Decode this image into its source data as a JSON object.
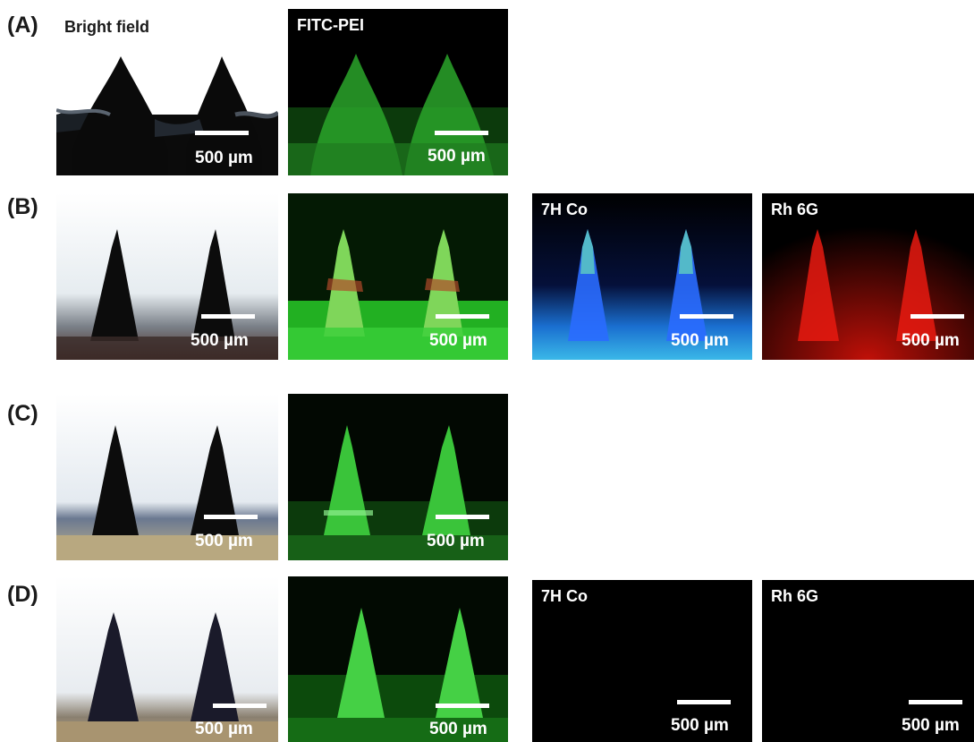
{
  "rows": [
    {
      "label": "(A)"
    },
    {
      "label": "(B)"
    },
    {
      "label": "(C)"
    },
    {
      "label": "(D)"
    }
  ],
  "columns": {
    "bright_field": "Bright field",
    "fitc_pei": "FITC-PEI",
    "h7_co": "7H Co",
    "rh6g": "Rh 6G"
  },
  "scale_bar_label": "500 µm",
  "colors": {
    "fitc_green": "#2fd02f",
    "blue_7hco": "#2a6cff",
    "red_rh6g": "#e81a10",
    "dark_needle": "#0c0c0c"
  }
}
